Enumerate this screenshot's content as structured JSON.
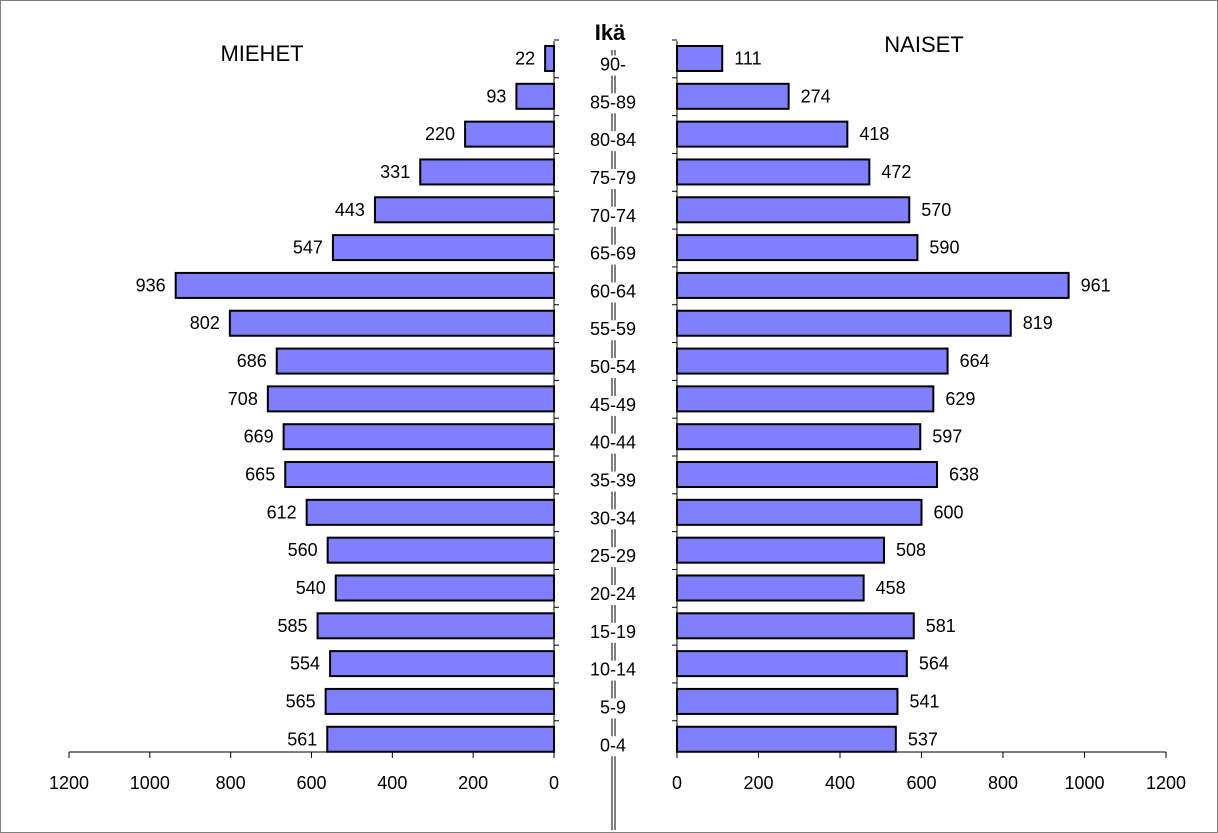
{
  "chart_data": {
    "type": "bar",
    "orientation": "horizontal",
    "layout": "population-pyramid",
    "center_title": "Ikä",
    "categories": [
      "90-",
      "85-89",
      "80-84",
      "75-79",
      "70-74",
      "65-69",
      "60-64",
      "55-59",
      "50-54",
      "45-49",
      "40-44",
      "35-39",
      "30-34",
      "25-29",
      "20-24",
      "15-19",
      "10-14",
      "5-9",
      "0-4"
    ],
    "series": [
      {
        "name": "MIEHET",
        "values": [
          22,
          93,
          220,
          331,
          443,
          547,
          936,
          802,
          686,
          708,
          669,
          665,
          612,
          560,
          540,
          585,
          554,
          565,
          561
        ]
      },
      {
        "name": "NAISET",
        "values": [
          111,
          274,
          418,
          472,
          570,
          590,
          961,
          819,
          664,
          629,
          597,
          638,
          600,
          508,
          458,
          581,
          564,
          541,
          537
        ]
      }
    ],
    "xlim": [
      0,
      1200
    ],
    "xticks": [
      0,
      200,
      400,
      600,
      800,
      1000,
      1200
    ],
    "bar_color": "#8080ff",
    "grid": false
  }
}
